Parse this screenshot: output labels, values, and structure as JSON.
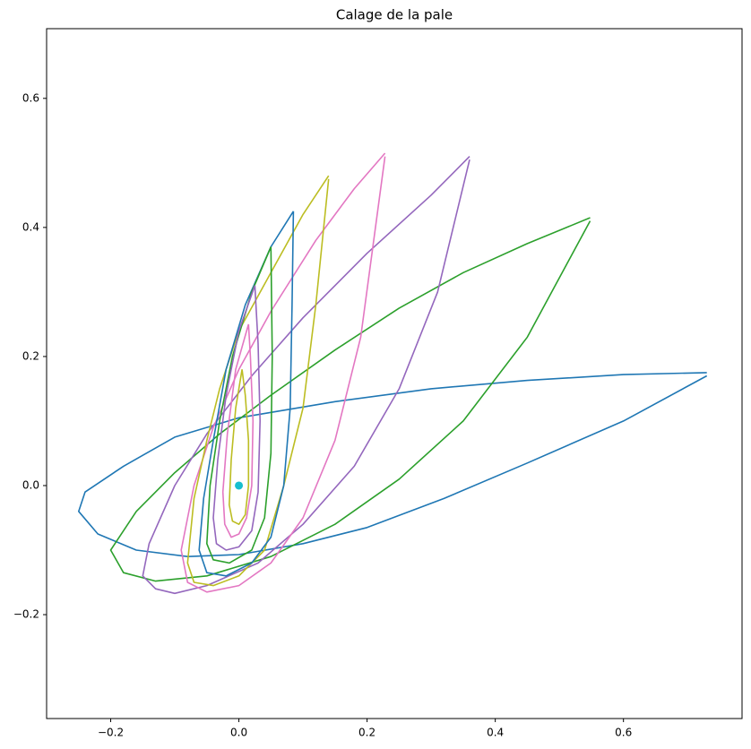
{
  "chart_data": {
    "type": "line",
    "title": "Calage de la pale",
    "xlim": [
      -0.3,
      0.785
    ],
    "ylim": [
      -0.361,
      0.708
    ],
    "xticks": [
      {
        "value": -0.2,
        "label": "−0.2"
      },
      {
        "value": 0,
        "label": "0.0"
      },
      0.2,
      0.4,
      0.6
    ],
    "yticks": [
      {
        "value": -0.2,
        "label": "−0.2"
      },
      {
        "value": 0,
        "label": "0.0"
      },
      0.2,
      0.4,
      0.6
    ],
    "grid": false,
    "series": [
      {
        "color": "#1f77b4",
        "x": [
          0.73,
          0.6,
          0.45,
          0.3,
          0.15,
          0.0,
          -0.1,
          -0.18,
          -0.24,
          -0.25,
          -0.22,
          -0.16,
          -0.08,
          0.0,
          0.1,
          0.2,
          0.32,
          0.45,
          0.6,
          0.73
        ],
        "y": [
          0.175,
          0.172,
          0.163,
          0.15,
          0.13,
          0.105,
          0.075,
          0.03,
          -0.01,
          -0.04,
          -0.075,
          -0.1,
          -0.11,
          -0.107,
          -0.09,
          -0.065,
          -0.02,
          0.035,
          0.1,
          0.17
        ]
      },
      {
        "color": "#2ca02c",
        "x": [
          0.548,
          0.45,
          0.35,
          0.25,
          0.15,
          0.05,
          -0.03,
          -0.1,
          -0.16,
          -0.2,
          -0.18,
          -0.13,
          -0.05,
          0.05,
          0.15,
          0.25,
          0.35,
          0.45,
          0.548
        ],
        "y": [
          0.415,
          0.375,
          0.33,
          0.275,
          0.21,
          0.14,
          0.08,
          0.02,
          -0.04,
          -0.1,
          -0.135,
          -0.148,
          -0.14,
          -0.11,
          -0.06,
          0.01,
          0.1,
          0.23,
          0.41
        ]
      },
      {
        "color": "#9467bd",
        "x": [
          0.36,
          0.3,
          0.2,
          0.1,
          0.02,
          -0.05,
          -0.1,
          -0.14,
          -0.15,
          -0.13,
          -0.1,
          -0.05,
          0.03,
          0.1,
          0.18,
          0.25,
          0.31,
          0.36
        ],
        "y": [
          0.51,
          0.45,
          0.36,
          0.26,
          0.17,
          0.08,
          0.0,
          -0.09,
          -0.14,
          -0.16,
          -0.167,
          -0.155,
          -0.12,
          -0.06,
          0.03,
          0.15,
          0.3,
          0.505
        ]
      },
      {
        "color": "#e377c2",
        "x": [
          0.228,
          0.18,
          0.12,
          0.05,
          0.0,
          -0.04,
          -0.07,
          -0.09,
          -0.08,
          -0.05,
          0.0,
          0.05,
          0.1,
          0.15,
          0.19,
          0.228
        ],
        "y": [
          0.515,
          0.46,
          0.38,
          0.27,
          0.18,
          0.09,
          0.0,
          -0.1,
          -0.15,
          -0.165,
          -0.155,
          -0.12,
          -0.05,
          0.07,
          0.23,
          0.51
        ]
      },
      {
        "color": "#bcbd22",
        "x": [
          0.14,
          0.1,
          0.05,
          0.0,
          -0.03,
          -0.05,
          -0.07,
          -0.08,
          -0.07,
          -0.04,
          0.0,
          0.04,
          0.07,
          0.1,
          0.12,
          0.14
        ],
        "y": [
          0.48,
          0.42,
          0.33,
          0.24,
          0.15,
          0.07,
          -0.02,
          -0.12,
          -0.15,
          -0.155,
          -0.14,
          -0.1,
          0.0,
          0.12,
          0.28,
          0.475
        ]
      },
      {
        "color": "#17becf",
        "marker": true,
        "x": [
          0
        ],
        "y": [
          0
        ]
      },
      {
        "color": "#1f77b4",
        "x": [
          0.085,
          0.05,
          0.01,
          -0.02,
          -0.04,
          -0.055,
          -0.062,
          -0.05,
          -0.02,
          0.02,
          0.05,
          0.07,
          0.08,
          0.083,
          0.085
        ],
        "y": [
          0.425,
          0.37,
          0.28,
          0.18,
          0.07,
          -0.02,
          -0.1,
          -0.135,
          -0.14,
          -0.12,
          -0.08,
          0.0,
          0.12,
          0.28,
          0.425
        ]
      },
      {
        "color": "#2ca02c",
        "x": [
          0.05,
          0.02,
          -0.01,
          -0.03,
          -0.045,
          -0.05,
          -0.04,
          -0.015,
          0.02,
          0.04,
          0.05,
          0.052,
          0.05
        ],
        "y": [
          0.37,
          0.3,
          0.2,
          0.1,
          0.0,
          -0.09,
          -0.115,
          -0.12,
          -0.1,
          -0.05,
          0.05,
          0.2,
          0.37
        ]
      },
      {
        "color": "#9467bd",
        "x": [
          0.025,
          0.0,
          -0.02,
          -0.033,
          -0.04,
          -0.035,
          -0.02,
          0.0,
          0.02,
          0.03,
          0.033,
          0.03,
          0.025
        ],
        "y": [
          0.31,
          0.24,
          0.14,
          0.04,
          -0.05,
          -0.09,
          -0.1,
          -0.095,
          -0.07,
          -0.01,
          0.1,
          0.22,
          0.31
        ]
      },
      {
        "color": "#e377c2",
        "x": [
          0.015,
          -0.005,
          -0.018,
          -0.025,
          -0.022,
          -0.012,
          0.0,
          0.012,
          0.02,
          0.022,
          0.018,
          0.015
        ],
        "y": [
          0.25,
          0.18,
          0.08,
          -0.01,
          -0.06,
          -0.08,
          -0.075,
          -0.05,
          0.0,
          0.1,
          0.2,
          0.25
        ]
      },
      {
        "color": "#bcbd22",
        "x": [
          0.005,
          -0.005,
          -0.012,
          -0.015,
          -0.01,
          0.0,
          0.01,
          0.015,
          0.015,
          0.01,
          0.005
        ],
        "y": [
          0.18,
          0.12,
          0.04,
          -0.03,
          -0.055,
          -0.06,
          -0.045,
          0.0,
          0.07,
          0.14,
          0.18
        ]
      }
    ]
  }
}
